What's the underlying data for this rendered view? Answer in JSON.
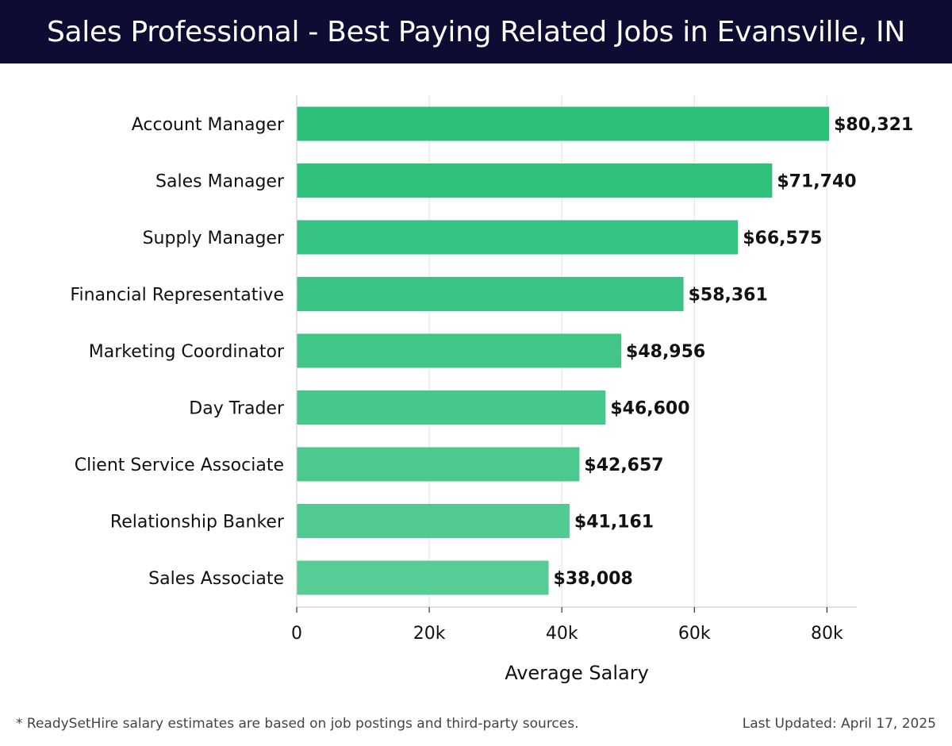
{
  "header": {
    "title": "Sales Professional - Best Paying Related Jobs in Evansville, IN"
  },
  "chart_data": {
    "type": "bar",
    "orientation": "horizontal",
    "categories": [
      "Account Manager",
      "Sales Manager",
      "Supply Manager",
      "Financial Representative",
      "Marketing Coordinator",
      "Day Trader",
      "Client Service Associate",
      "Relationship Banker",
      "Sales Associate"
    ],
    "values": [
      80321,
      71740,
      66575,
      58361,
      48956,
      46600,
      42657,
      41161,
      38008
    ],
    "value_labels": [
      "$80,321",
      "$71,740",
      "$66,575",
      "$58,361",
      "$48,956",
      "$46,600",
      "$42,657",
      "$41,161",
      "$38,008"
    ],
    "xlabel": "Average Salary",
    "ylabel": "",
    "xlim": [
      0,
      84500
    ],
    "xticks": [
      0,
      20000,
      40000,
      60000,
      80000
    ],
    "xtick_labels": [
      "0",
      "20k",
      "40k",
      "60k",
      "80k"
    ],
    "grid": true,
    "bar_color_top": "#2bbf78",
    "bar_color_bottom": "#56cc96"
  },
  "footer": {
    "note": "* ReadySetHire salary estimates are based on job postings and third-party sources.",
    "updated": "Last Updated: April 17, 2025"
  }
}
